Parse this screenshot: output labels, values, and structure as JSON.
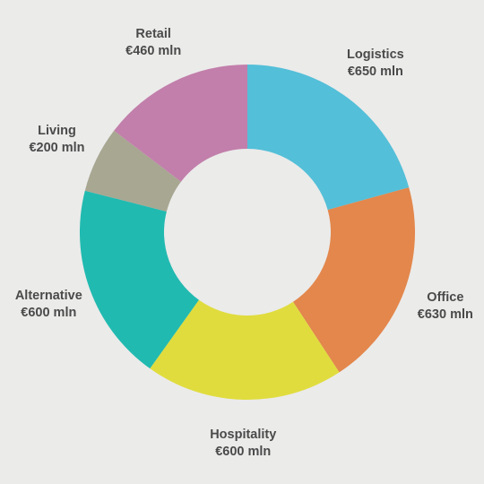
{
  "chart_data": {
    "type": "pie",
    "donut": true,
    "background": "#ebebea",
    "segments": [
      {
        "name": "Logistics",
        "label": "€650 mln",
        "value": 650,
        "color": "#54bfd8"
      },
      {
        "name": "Office",
        "label": "€630 mln",
        "value": 630,
        "color": "#e3874c"
      },
      {
        "name": "Hospitality",
        "label": "€600 mln",
        "value": 600,
        "color": "#e0dc3e"
      },
      {
        "name": "Alternative",
        "label": "€600 mln",
        "value": 600,
        "color": "#21bab0"
      },
      {
        "name": "Living",
        "label": "€200 mln",
        "value": 200,
        "color": "#a8a792"
      },
      {
        "name": "Retail",
        "label": "€460 mln",
        "value": 460,
        "color": "#c27fab"
      }
    ]
  }
}
